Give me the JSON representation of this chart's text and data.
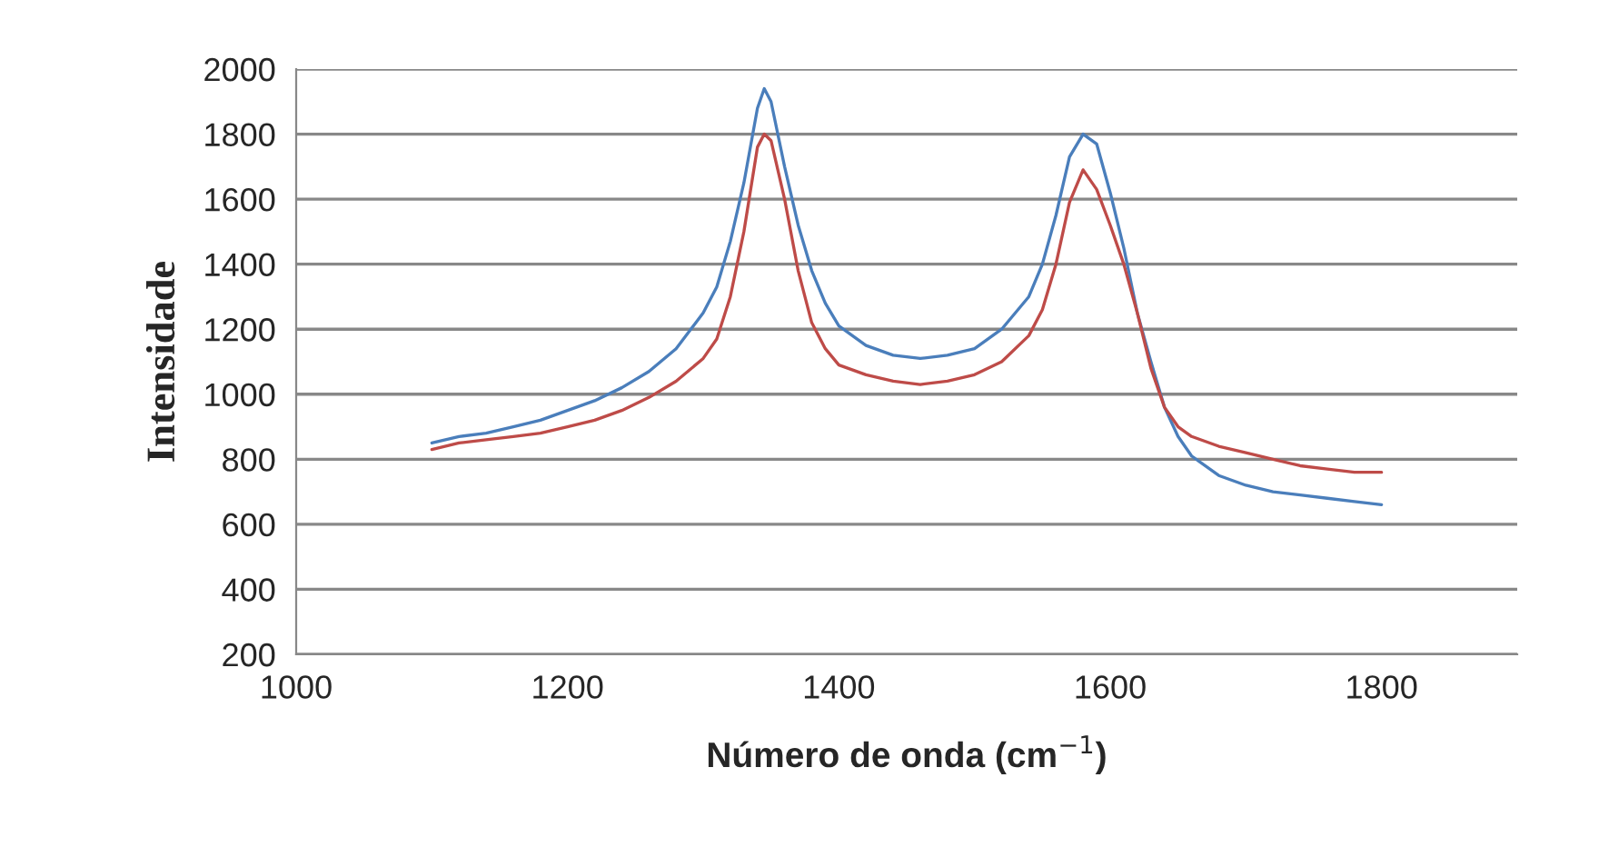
{
  "chart_data": {
    "type": "line",
    "xlabel": "Número de onda (cm$^{−1}$)",
    "ylabel": "Intensidade",
    "xlim": [
      1000,
      1900
    ],
    "xticks": [
      1000,
      1200,
      1400,
      1600,
      1800
    ],
    "ylim": [
      200,
      2000
    ],
    "yticks": [
      200,
      400,
      600,
      800,
      1000,
      1200,
      1400,
      1600,
      1800,
      2000
    ],
    "grid": "y",
    "legend": false,
    "marker": "none",
    "line_style": "solid",
    "series": [
      {
        "color": "#4a7ebb",
        "x": [
          1100,
          1120,
          1140,
          1160,
          1180,
          1200,
          1220,
          1240,
          1260,
          1280,
          1300,
          1310,
          1320,
          1330,
          1340,
          1345,
          1350,
          1360,
          1370,
          1380,
          1390,
          1400,
          1420,
          1440,
          1460,
          1480,
          1500,
          1520,
          1540,
          1550,
          1560,
          1570,
          1580,
          1590,
          1600,
          1610,
          1620,
          1630,
          1640,
          1650,
          1660,
          1680,
          1700,
          1720,
          1740,
          1760,
          1780,
          1800
        ],
        "values": [
          850,
          870,
          880,
          900,
          920,
          950,
          980,
          1020,
          1070,
          1140,
          1250,
          1330,
          1470,
          1650,
          1880,
          1940,
          1900,
          1700,
          1520,
          1380,
          1280,
          1210,
          1150,
          1120,
          1110,
          1120,
          1140,
          1200,
          1300,
          1400,
          1550,
          1730,
          1800,
          1770,
          1620,
          1450,
          1250,
          1100,
          960,
          870,
          810,
          750,
          720,
          700,
          690,
          680,
          670,
          660
        ]
      },
      {
        "color": "#be4b48",
        "x": [
          1100,
          1120,
          1140,
          1160,
          1180,
          1200,
          1220,
          1240,
          1260,
          1280,
          1300,
          1310,
          1320,
          1330,
          1340,
          1345,
          1350,
          1360,
          1370,
          1380,
          1390,
          1400,
          1420,
          1440,
          1460,
          1480,
          1500,
          1520,
          1540,
          1550,
          1560,
          1570,
          1580,
          1590,
          1600,
          1610,
          1620,
          1630,
          1640,
          1650,
          1660,
          1680,
          1700,
          1720,
          1740,
          1760,
          1780,
          1800
        ],
        "values": [
          830,
          850,
          860,
          870,
          880,
          900,
          920,
          950,
          990,
          1040,
          1110,
          1170,
          1300,
          1500,
          1760,
          1800,
          1780,
          1600,
          1380,
          1220,
          1140,
          1090,
          1060,
          1040,
          1030,
          1040,
          1060,
          1100,
          1180,
          1260,
          1400,
          1590,
          1690,
          1630,
          1520,
          1400,
          1250,
          1080,
          960,
          900,
          870,
          840,
          820,
          800,
          780,
          770,
          760,
          760
        ]
      }
    ]
  }
}
